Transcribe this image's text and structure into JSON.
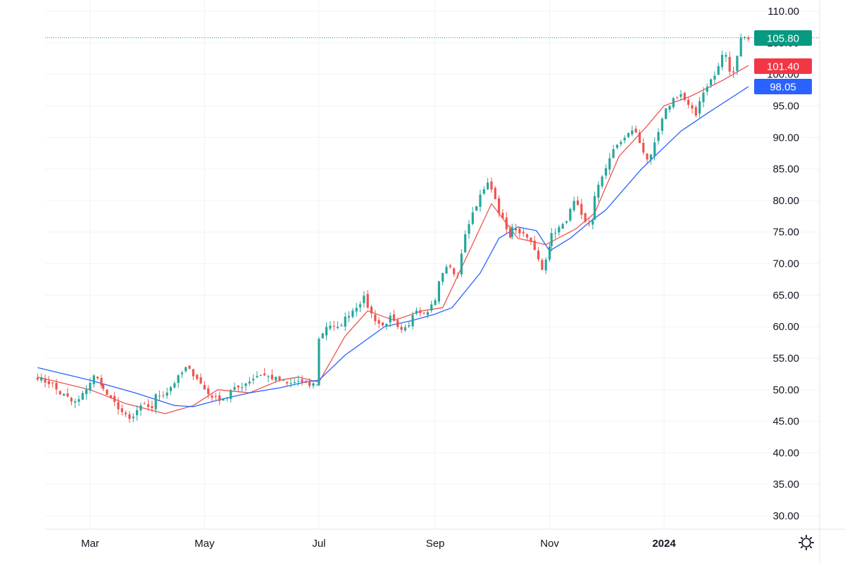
{
  "chart_data": {
    "type": "candlestick",
    "title": "",
    "xlabel": "",
    "ylabel": "",
    "ylim": [
      27.5,
      112
    ],
    "y_ticks": [
      "110.00",
      "105.00",
      "100.00",
      "95.00",
      "90.00",
      "85.00",
      "80.00",
      "75.00",
      "70.00",
      "65.00",
      "60.00",
      "55.00",
      "50.00",
      "45.00",
      "40.00",
      "35.00",
      "30.00"
    ],
    "y_tick_values": [
      110,
      105,
      100,
      95,
      90,
      85,
      80,
      75,
      70,
      65,
      60,
      55,
      50,
      45,
      40,
      35,
      30
    ],
    "x_labels": [
      {
        "label": "Mar",
        "date": "2023-03-01",
        "bold": false
      },
      {
        "label": "May",
        "date": "2023-05-01",
        "bold": false
      },
      {
        "label": "Jul",
        "date": "2023-07-01",
        "bold": false
      },
      {
        "label": "Sep",
        "date": "2023-09-01",
        "bold": false
      },
      {
        "label": "Nov",
        "date": "2023-11-01",
        "bold": false
      },
      {
        "label": "2024",
        "date": "2024-01-01",
        "bold": true
      }
    ],
    "xlim": [
      "2023-02-01",
      "2024-03-05"
    ],
    "grid": true,
    "candles": {
      "start_date": "2023-02-01",
      "end_date": "2024-02-15",
      "close": [
        [
          52.0,
          51.3,
          51.0,
          49.5,
          49.0,
          47.8,
          48.5,
          50.5,
          52.2,
          51.0
        ],
        [
          50.0,
          48.5,
          47.4,
          46.0,
          45.0,
          47.0,
          47.5,
          47.2
        ],
        [
          49.0,
          49.5,
          51.5,
          53.5,
          52.0,
          49.5,
          48.5,
          48.8
        ],
        [
          49.8,
          50.5,
          51.5,
          52.5,
          52.0,
          51.6,
          50.8,
          51.4,
          50.6,
          51.0
        ],
        [
          58.0,
          60.5,
          59.5,
          61.5,
          63.0,
          64.5,
          61.5,
          60.0,
          61.5,
          59.0,
          60.0
        ],
        [
          62.0,
          63.0,
          62.5,
          62.0,
          63.0,
          62.5,
          63.8,
          64.5,
          67.0
        ],
        [
          68.5,
          70.0,
          67.0,
          73.0,
          77.0,
          79.5,
          81.5,
          83.0,
          79.0,
          76.5,
          74.0
        ],
        [
          76.0,
          75.0,
          74.5,
          72.0,
          69.0,
          73.0
        ],
        [
          74.5,
          75.5,
          76.0,
          78.0,
          80.0,
          77.5,
          76.0,
          77.0
        ],
        [
          80.5,
          84.0,
          87.0,
          89.0,
          90.0,
          91.5,
          88.5,
          86.0,
          90.0,
          94.0,
          96.0,
          97.0,
          95.0,
          93.5
        ],
        [
          96.0,
          98.5,
          100.0,
          104.0,
          99.0,
          106.0,
          105.8
        ]
      ],
      "close_anchor_dates": [
        "2023-02-01",
        "2023-03-08",
        "2023-04-05",
        "2023-05-15",
        "2023-07-01",
        "2023-08-20",
        "2023-09-05",
        "2023-10-12",
        "2023-11-02",
        "2023-11-25",
        "2024-01-20"
      ],
      "close_anchor_end_dates": [
        "2023-03-07",
        "2023-04-04",
        "2023-05-14",
        "2023-06-30",
        "2023-08-19",
        "2023-09-04",
        "2023-10-11",
        "2023-11-01",
        "2023-11-24",
        "2024-01-19",
        "2024-02-15"
      ],
      "up_color": "#26a69a",
      "down_color": "#ef5350"
    },
    "series": [
      {
        "values": [
          52.0,
          50.0,
          47.8,
          46.2,
          47.5,
          50.0,
          49.5,
          51.5,
          52.0,
          51.2,
          58.5,
          62.5,
          61.0,
          62.5,
          63.0,
          72.5,
          79.5,
          74.0,
          73.0,
          75.5,
          78.0,
          87.0,
          91.5,
          95.0,
          96.5,
          99.0,
          101.4
        ],
        "dates": [
          "2023-02-01",
          "2023-03-01",
          "2023-03-20",
          "2023-04-10",
          "2023-04-25",
          "2023-05-08",
          "2023-05-25",
          "2023-06-10",
          "2023-06-20",
          "2023-07-01",
          "2023-07-15",
          "2023-07-27",
          "2023-08-10",
          "2023-08-25",
          "2023-09-05",
          "2023-09-20",
          "2023-10-01",
          "2023-10-15",
          "2023-10-30",
          "2023-11-15",
          "2023-11-25",
          "2023-12-08",
          "2023-12-22",
          "2024-01-01",
          "2024-01-15",
          "2024-02-01",
          "2024-02-15"
        ],
        "color": "#ef5350"
      },
      {
        "values": [
          53.5,
          51.5,
          49.5,
          47.5,
          47.3,
          48.5,
          49.5,
          50.3,
          51.3,
          51.5,
          55.5,
          60.0,
          61.0,
          62.0,
          63.0,
          68.5,
          74.0,
          75.8,
          75.2,
          72.0,
          74.0,
          76.5,
          78.5,
          85.0,
          91.0,
          94.0,
          98.05
        ],
        "dates": [
          "2023-02-01",
          "2023-03-01",
          "2023-03-25",
          "2023-04-15",
          "2023-04-25",
          "2023-05-10",
          "2023-05-25",
          "2023-06-10",
          "2023-06-25",
          "2023-07-01",
          "2023-07-15",
          "2023-08-05",
          "2023-08-20",
          "2023-09-01",
          "2023-09-10",
          "2023-09-25",
          "2023-10-05",
          "2023-10-15",
          "2023-10-25",
          "2023-11-01",
          "2023-11-12",
          "2023-11-22",
          "2023-12-01",
          "2023-12-20",
          "2024-01-10",
          "2024-01-25",
          "2024-02-15"
        ],
        "color": "#2962ff"
      }
    ],
    "price_badges": [
      {
        "label": "105.80",
        "value": 105.8,
        "color": "#089981"
      },
      {
        "label": "101.40",
        "value": 101.4,
        "color": "#f23645"
      },
      {
        "label": "98.05",
        "value": 98.05,
        "color": "#2962ff"
      }
    ],
    "last_price_line": {
      "value": 105.8,
      "color": "#089981"
    }
  },
  "icons": {
    "settings": "gear-icon"
  }
}
